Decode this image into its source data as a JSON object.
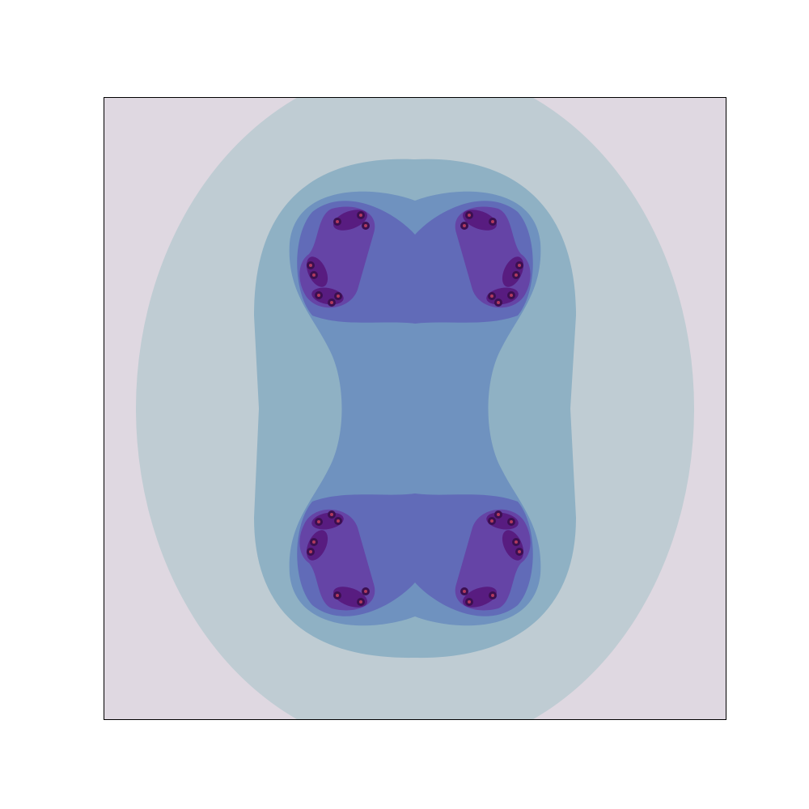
{
  "chart_data": {
    "type": "contour",
    "colors": [
      "#dfd8e1",
      "#bfccd3",
      "#8fb1c4",
      "#6f92bf",
      "#616bb8",
      "#6544a6",
      "#581c80",
      "#3c0f50",
      "#b03a5e"
    ]
  }
}
